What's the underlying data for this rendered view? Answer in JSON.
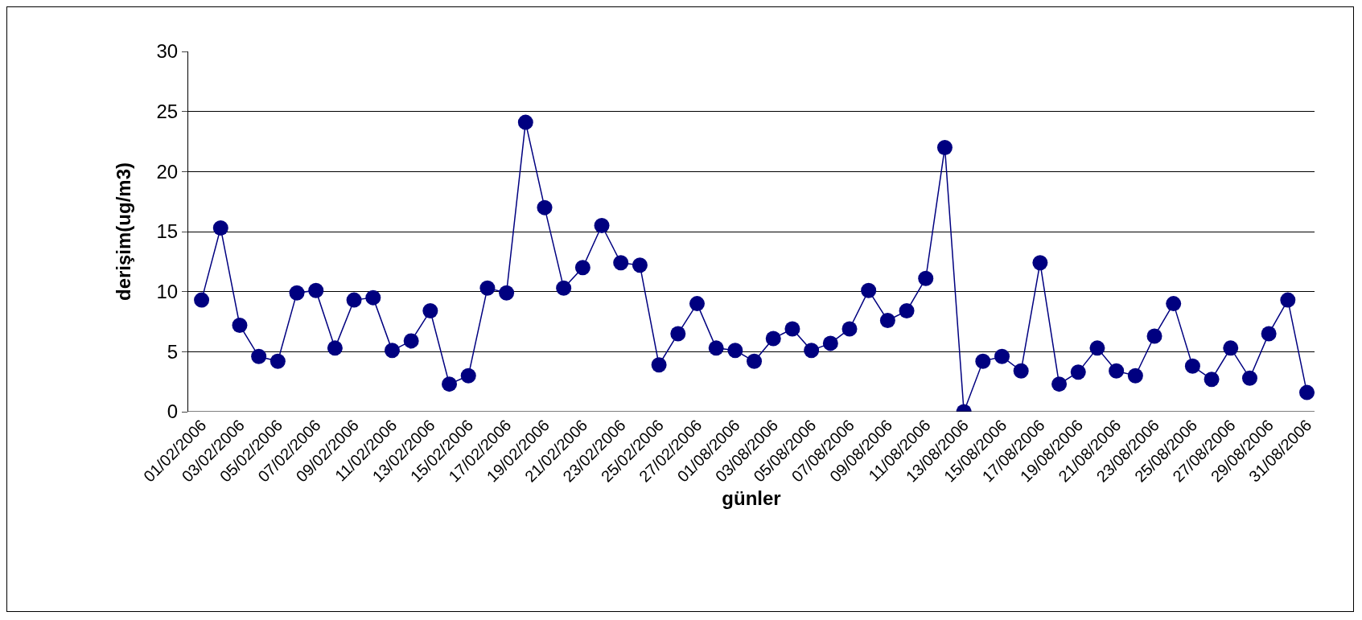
{
  "chart_data": {
    "type": "line",
    "xlabel": "günler",
    "ylabel": "derişim(ug/m3)",
    "categories": [
      "01/02/2006",
      null,
      "03/02/2006",
      null,
      "05/02/2006",
      null,
      "07/02/2006",
      null,
      "09/02/2006",
      null,
      "11/02/2006",
      null,
      "13/02/2006",
      null,
      "15/02/2006",
      null,
      "17/02/2006",
      null,
      "19/02/2006",
      null,
      "21/02/2006",
      null,
      "23/02/2006",
      null,
      "25/02/2006",
      null,
      "27/02/2006",
      null,
      "01/08/2006",
      null,
      "03/08/2006",
      null,
      "05/08/2006",
      null,
      "07/08/2006",
      null,
      "09/08/2006",
      null,
      "11/08/2006",
      null,
      "13/08/2006",
      null,
      "15/08/2006",
      null,
      "17/08/2006",
      null,
      "19/08/2006",
      null,
      "21/08/2006",
      null,
      "23/08/2006",
      null,
      "25/08/2006",
      null,
      "27/08/2006",
      null,
      "29/08/2006",
      null,
      "31/08/2006"
    ],
    "series": [
      {
        "color": "#000080",
        "values": [
          9.3,
          15.3,
          7.2,
          4.6,
          4.2,
          9.9,
          10.1,
          5.3,
          9.3,
          9.5,
          5.1,
          5.9,
          8.4,
          2.3,
          3.0,
          10.3,
          9.9,
          24.1,
          17.0,
          10.3,
          12.0,
          15.5,
          12.4,
          12.2,
          3.9,
          6.5,
          9.0,
          5.3,
          5.1,
          4.2,
          6.1,
          6.9,
          5.1,
          5.7,
          6.9,
          10.1,
          7.6,
          8.4,
          11.1,
          22.0,
          0.0,
          4.2,
          4.6,
          3.4,
          12.4,
          2.3,
          3.3,
          5.3,
          3.4,
          3.0,
          6.3,
          9.0,
          3.8,
          2.7,
          5.3,
          2.8,
          6.5,
          9.3,
          1.6
        ]
      }
    ],
    "ylim": [
      0,
      30
    ],
    "yticks": [
      0,
      5,
      10,
      15,
      20,
      25,
      30
    ],
    "grid": "y",
    "marker": "circle",
    "line_style": "solid"
  }
}
